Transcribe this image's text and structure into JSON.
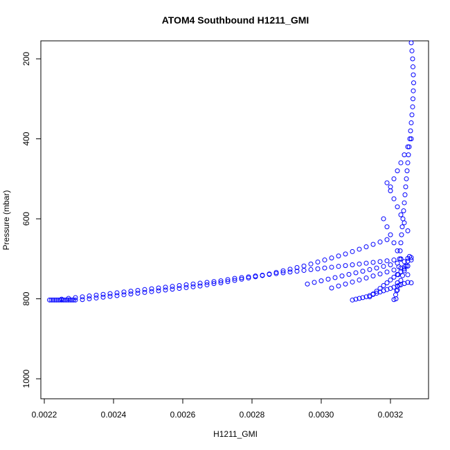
{
  "chart_data": {
    "type": "scatter",
    "title": "ATOM4 Southbound H1211_GMI",
    "xlabel": "H1211_GMI",
    "ylabel": "Pressure (mbar)",
    "xlim": [
      0.00219,
      0.00331
    ],
    "ylim": [
      1050,
      155
    ],
    "y_inverted": true,
    "grid": false,
    "x_ticks": [
      0.0022,
      0.0024,
      0.0026,
      0.0028,
      0.003,
      0.0032
    ],
    "x_tick_labels": [
      "0.0022",
      "0.0024",
      "0.0026",
      "0.0028",
      "0.0030",
      "0.0032"
    ],
    "y_ticks": [
      200,
      400,
      600,
      800,
      1000
    ],
    "y_tick_labels": [
      "200",
      "400",
      "600",
      "800",
      "1000"
    ],
    "marker": "open-circle",
    "color": "#0000ff",
    "series": [
      {
        "x": [
          0.002215,
          0.00222,
          0.002225,
          0.00223,
          0.002235,
          0.00224,
          0.002245,
          0.00225,
          0.002255,
          0.00226,
          0.002265,
          0.00227,
          0.002275,
          0.00228,
          0.002285,
          0.00229,
          0.00231,
          0.00233,
          0.00235,
          0.00237,
          0.00239,
          0.00241,
          0.00243,
          0.00245,
          0.00247,
          0.00249,
          0.00251,
          0.00253,
          0.00255,
          0.00257,
          0.00259,
          0.00261,
          0.00263,
          0.00265,
          0.00267,
          0.00269,
          0.00271,
          0.00273,
          0.00275,
          0.00277,
          0.00279,
          0.00281,
          0.00283,
          0.00285,
          0.00287,
          0.00289,
          0.00291,
          0.00293,
          0.00295,
          0.00297,
          0.00299,
          0.00301,
          0.00303,
          0.00305,
          0.00307,
          0.00309,
          0.00311,
          0.00313,
          0.00315,
          0.00317,
          0.00319
        ],
        "y": [
          803,
          803,
          803,
          803,
          803,
          803,
          803,
          803,
          803,
          803,
          803,
          803,
          803,
          803,
          803,
          803,
          802,
          800,
          798,
          796,
          794,
          792,
          790,
          788,
          786,
          784,
          782,
          780,
          778,
          776,
          774,
          772,
          770,
          768,
          765,
          762,
          760,
          757,
          754,
          751,
          748,
          745,
          742,
          738,
          734,
          730,
          726,
          722,
          718,
          713,
          708,
          703,
          698,
          693,
          688,
          682,
          676,
          670,
          664,
          658,
          652
        ]
      },
      {
        "x": [
          0.00225,
          0.00227,
          0.00229,
          0.00231,
          0.00233,
          0.00235,
          0.00237,
          0.00239,
          0.00241,
          0.00243,
          0.00245,
          0.00247,
          0.00249,
          0.00251,
          0.00253,
          0.00255,
          0.00257,
          0.00259,
          0.00261,
          0.00263,
          0.00265,
          0.00267,
          0.00269,
          0.00271,
          0.00273,
          0.00275,
          0.00277,
          0.00279,
          0.00281,
          0.00283,
          0.00285,
          0.00287,
          0.00289,
          0.00291,
          0.00293,
          0.00295,
          0.00297,
          0.00299,
          0.00301,
          0.00303,
          0.00305,
          0.00307,
          0.00309,
          0.00311,
          0.00313,
          0.00315,
          0.00317,
          0.00319,
          0.00321,
          0.00323,
          0.00325,
          0.00326
        ],
        "y": [
          801,
          799,
          797,
          795,
          793,
          791,
          789,
          787,
          785,
          783,
          781,
          779,
          777,
          775,
          773,
          771,
          769,
          767,
          765,
          763,
          761,
          759,
          757,
          755,
          752,
          749,
          747,
          745,
          743,
          741,
          739,
          737,
          735,
          733,
          731,
          729,
          727,
          725,
          723,
          721,
          719,
          717,
          715,
          713,
          711,
          709,
          707,
          705,
          703,
          701,
          699,
          697
        ]
      },
      {
        "x": [
          0.00296,
          0.00298,
          0.003,
          0.00302,
          0.00304,
          0.00306,
          0.00308,
          0.0031,
          0.00312,
          0.00314,
          0.00316,
          0.00318,
          0.0032,
          0.00322,
          0.00324,
          0.00326
        ],
        "y": [
          763,
          759,
          755,
          751,
          747,
          743,
          739,
          735,
          731,
          727,
          723,
          719,
          715,
          711,
          707,
          703
        ]
      },
      {
        "x": [
          0.00303,
          0.00305,
          0.00307,
          0.00309,
          0.00311,
          0.00313,
          0.00315,
          0.00317,
          0.00319,
          0.00321,
          0.00323,
          0.00325
        ],
        "y": [
          773,
          768,
          763,
          758,
          753,
          748,
          743,
          738,
          733,
          728,
          723,
          718
        ]
      },
      {
        "x": [
          0.00309,
          0.0031,
          0.00311,
          0.00312,
          0.00313,
          0.00314,
          0.00315,
          0.00316,
          0.00317,
          0.00318,
          0.00319,
          0.0032,
          0.00321,
          0.00322,
          0.00323,
          0.00324,
          0.00325
        ],
        "y": [
          803,
          801,
          799,
          797,
          795,
          792,
          789,
          786,
          783,
          780,
          777,
          774,
          771,
          768,
          765,
          762,
          759
        ]
      },
      {
        "x": [
          0.00314,
          0.00315,
          0.00316,
          0.00317,
          0.00318,
          0.00319,
          0.0032,
          0.00321,
          0.00322,
          0.00323,
          0.00324,
          0.00325
        ],
        "y": [
          795,
          788,
          781,
          774,
          767,
          760,
          753,
          746,
          739,
          732,
          725,
          718
        ]
      },
      {
        "x": [
          0.00321,
          0.003215,
          0.00322,
          0.003225,
          0.00323,
          0.003235,
          0.00324,
          0.003245,
          0.00325,
          0.003255
        ],
        "y": [
          802,
          790,
          778,
          766,
          754,
          742,
          730,
          718,
          706,
          694
        ]
      },
      {
        "x": [
          0.00318,
          0.00319,
          0.0032,
          0.00321,
          0.00322,
          0.00323,
          0.00324,
          0.00325,
          0.00326
        ],
        "y": [
          600,
          620,
          640,
          660,
          680,
          700,
          720,
          740,
          760
        ]
      },
      {
        "x": [
          0.00319,
          0.0032,
          0.00321,
          0.00322,
          0.00323,
          0.00324,
          0.00325
        ],
        "y": [
          510,
          530,
          550,
          570,
          590,
          610,
          630
        ]
      },
      {
        "x": [
          0.0032,
          0.00321,
          0.00322,
          0.00323,
          0.00324,
          0.00325,
          0.00326
        ],
        "y": [
          520,
          500,
          480,
          460,
          440,
          420,
          400
        ]
      },
      {
        "x": [
          0.00326,
          0.003262,
          0.003264,
          0.003265,
          0.003266,
          0.003267,
          0.003266,
          0.003265,
          0.003264,
          0.003262,
          0.00326,
          0.003258,
          0.003256,
          0.003254,
          0.003252,
          0.00325,
          0.003248,
          0.003246,
          0.003244,
          0.003242,
          0.00324,
          0.003238,
          0.003236,
          0.003234,
          0.003232,
          0.00323,
          0.003228,
          0.003226,
          0.003224,
          0.003222,
          0.00322,
          0.003218,
          0.003216
        ],
        "y": [
          160,
          180,
          200,
          220,
          240,
          260,
          280,
          300,
          320,
          340,
          360,
          380,
          400,
          420,
          440,
          460,
          480,
          500,
          520,
          540,
          560,
          580,
          600,
          620,
          640,
          660,
          680,
          700,
          720,
          740,
          760,
          780,
          800
        ]
      }
    ]
  }
}
